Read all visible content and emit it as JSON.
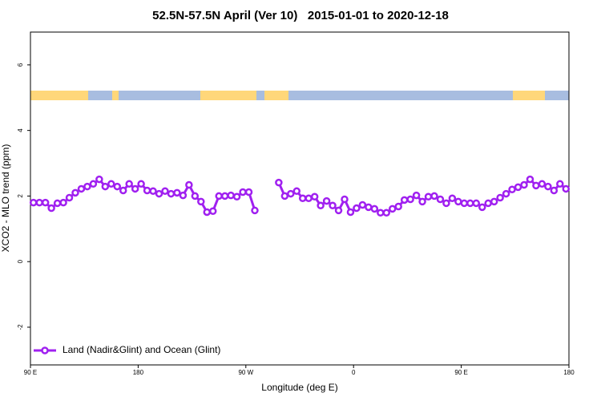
{
  "chart_data": {
    "type": "line",
    "title": "52.5N-57.5N April (Ver 10)   2015-01-01 to 2020-12-18",
    "x_label": "Longitude (deg E)",
    "y_label": "XCO2 - MLO trend (ppm)",
    "xlim": [
      90,
      540
    ],
    "ylim": [
      -3.15,
      7
    ],
    "xticks": [
      {
        "value": 90,
        "label": "90 E"
      },
      180,
      {
        "value": 270,
        "label": "90 W"
      },
      {
        "value": 360,
        "label": "0"
      },
      {
        "value": 450,
        "label": "90 E"
      },
      {
        "value": 540,
        "label": "180"
      }
    ],
    "yticks": [
      -2,
      0,
      2,
      4,
      6
    ],
    "legend": "bottom-left",
    "x": [
      92.5,
      97.5,
      102.5,
      107.5,
      112.5,
      117.5,
      122.5,
      127.5,
      132.5,
      137.5,
      142.5,
      147.5,
      152.5,
      157.5,
      162.5,
      167.5,
      172.5,
      177.5,
      182.5,
      187.5,
      192.5,
      197.5,
      202.5,
      207.5,
      212.5,
      217.5,
      222.5,
      227.5,
      232.5,
      237.5,
      242.5,
      247.5,
      252.5,
      257.5,
      262.5,
      267.5,
      272.5,
      277.5,
      282.5,
      287.5,
      292.5,
      297.5,
      302.5,
      307.5,
      312.5,
      317.5,
      322.5,
      327.5,
      332.5,
      337.5,
      342.5,
      347.5,
      352.5,
      357.5,
      362.5,
      367.5,
      372.5,
      377.5,
      382.5,
      387.5,
      392.5,
      397.5,
      402.5,
      407.5,
      412.5,
      417.5,
      422.5,
      427.5,
      432.5,
      437.5,
      442.5,
      447.5,
      452.5,
      457.5,
      462.5,
      467.5,
      472.5,
      477.5,
      482.5,
      487.5,
      492.5,
      497.5,
      502.5,
      507.5,
      512.5,
      517.5,
      522.5,
      527.5,
      532.5,
      537.5
    ],
    "series": [
      {
        "name": "Land (Nadir&Glint) and Ocean (Glint)",
        "color": "#a020f0",
        "values": [
          1.8,
          1.8,
          1.8,
          1.63,
          1.78,
          1.8,
          1.95,
          2.1,
          2.22,
          2.29,
          2.37,
          2.51,
          2.29,
          2.37,
          2.29,
          2.17,
          2.37,
          2.22,
          2.37,
          2.17,
          2.15,
          2.07,
          2.15,
          2.07,
          2.1,
          2.02,
          2.34,
          2.0,
          1.83,
          1.51,
          1.54,
          2.0,
          2.0,
          2.02,
          1.98,
          2.12,
          2.12,
          1.56,
          null,
          null,
          null,
          2.41,
          2.0,
          2.07,
          2.15,
          1.93,
          1.93,
          1.98,
          1.71,
          1.85,
          1.71,
          1.56,
          1.9,
          1.51,
          1.63,
          1.73,
          1.66,
          1.61,
          1.49,
          1.49,
          1.61,
          1.68,
          1.88,
          1.9,
          2.02,
          1.83,
          1.98,
          2.0,
          1.9,
          1.78,
          1.93,
          1.83,
          1.78,
          1.78,
          1.78,
          1.66,
          1.78,
          1.83,
          1.95,
          2.07,
          2.2,
          2.27,
          2.34,
          2.51,
          2.32,
          2.37,
          2.29,
          2.17,
          2.37,
          2.22
        ]
      }
    ]
  }
}
